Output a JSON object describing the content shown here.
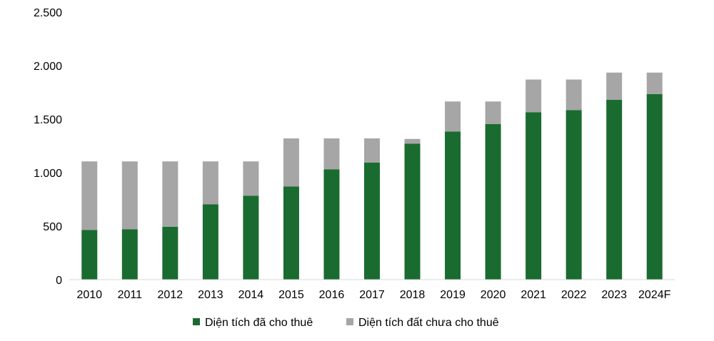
{
  "chart_data": {
    "type": "bar",
    "stacked": true,
    "categories": [
      "2010",
      "2011",
      "2012",
      "2013",
      "2014",
      "2015",
      "2016",
      "2017",
      "2018",
      "2019",
      "2020",
      "2021",
      "2022",
      "2023",
      "2024F"
    ],
    "series": [
      {
        "name": "Diện tích đã cho thuê",
        "color": "#1a6b2f",
        "values": [
          465,
          470,
          495,
          705,
          785,
          870,
          1030,
          1095,
          1270,
          1385,
          1455,
          1565,
          1585,
          1680,
          1735
        ]
      },
      {
        "name": "Diện tích đất chưa cho thuê",
        "color": "#a6a6a6",
        "values": [
          640,
          635,
          610,
          400,
          320,
          450,
          290,
          225,
          45,
          280,
          210,
          305,
          285,
          255,
          200
        ]
      }
    ],
    "ylim": [
      0,
      2500
    ],
    "yticks": [
      0,
      500,
      1000,
      1500,
      2000,
      2500
    ],
    "ytick_labels": [
      "0",
      "500",
      "1.000",
      "1.500",
      "2.000",
      "2.500"
    ],
    "grid": false,
    "legend_position": "bottom",
    "title": "",
    "xlabel": "",
    "ylabel": ""
  }
}
